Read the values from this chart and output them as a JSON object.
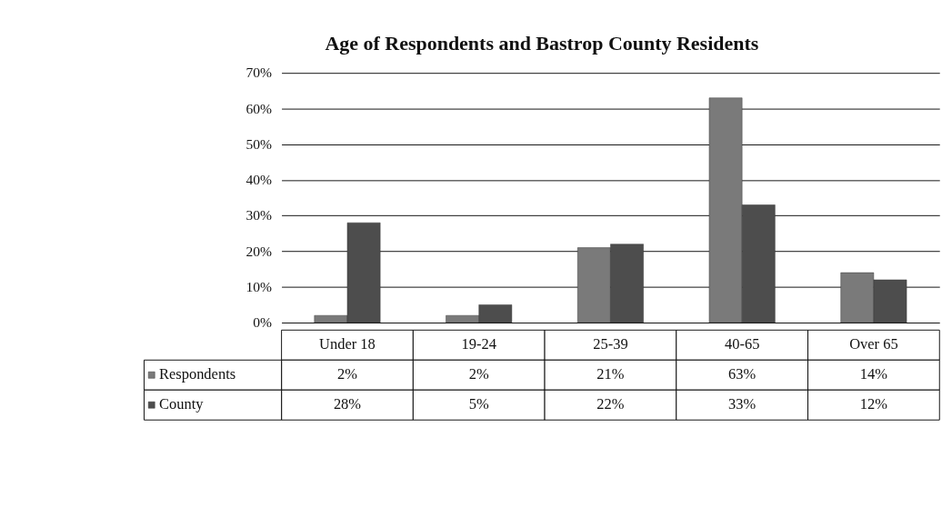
{
  "chart_data": {
    "type": "bar",
    "title": "Age of Respondents and Bastrop County Residents",
    "categories": [
      "Under 18",
      "19-24",
      "25-39",
      "40-65",
      "Over 65"
    ],
    "series": [
      {
        "name": "Respondents",
        "color": "#7a7a7a",
        "values": [
          2,
          2,
          21,
          63,
          14
        ],
        "value_labels": [
          "2%",
          "2%",
          "21%",
          "63%",
          "14%"
        ]
      },
      {
        "name": "County",
        "color": "#4d4d4d",
        "values": [
          28,
          5,
          22,
          33,
          12
        ],
        "value_labels": [
          "28%",
          "5%",
          "22%",
          "33%",
          "12%"
        ]
      }
    ],
    "ylim": [
      0,
      70
    ],
    "yticks": [
      {
        "value": 0,
        "label": "0%"
      },
      {
        "value": 10,
        "label": "10%"
      },
      {
        "value": 20,
        "label": "20%"
      },
      {
        "value": 30,
        "label": "30%"
      },
      {
        "value": 40,
        "label": "40%"
      },
      {
        "value": 50,
        "label": "50%"
      },
      {
        "value": 60,
        "label": "60%"
      },
      {
        "value": 70,
        "label": "70%"
      }
    ],
    "grid": "y",
    "legend": "bottom",
    "data_labels": true
  }
}
